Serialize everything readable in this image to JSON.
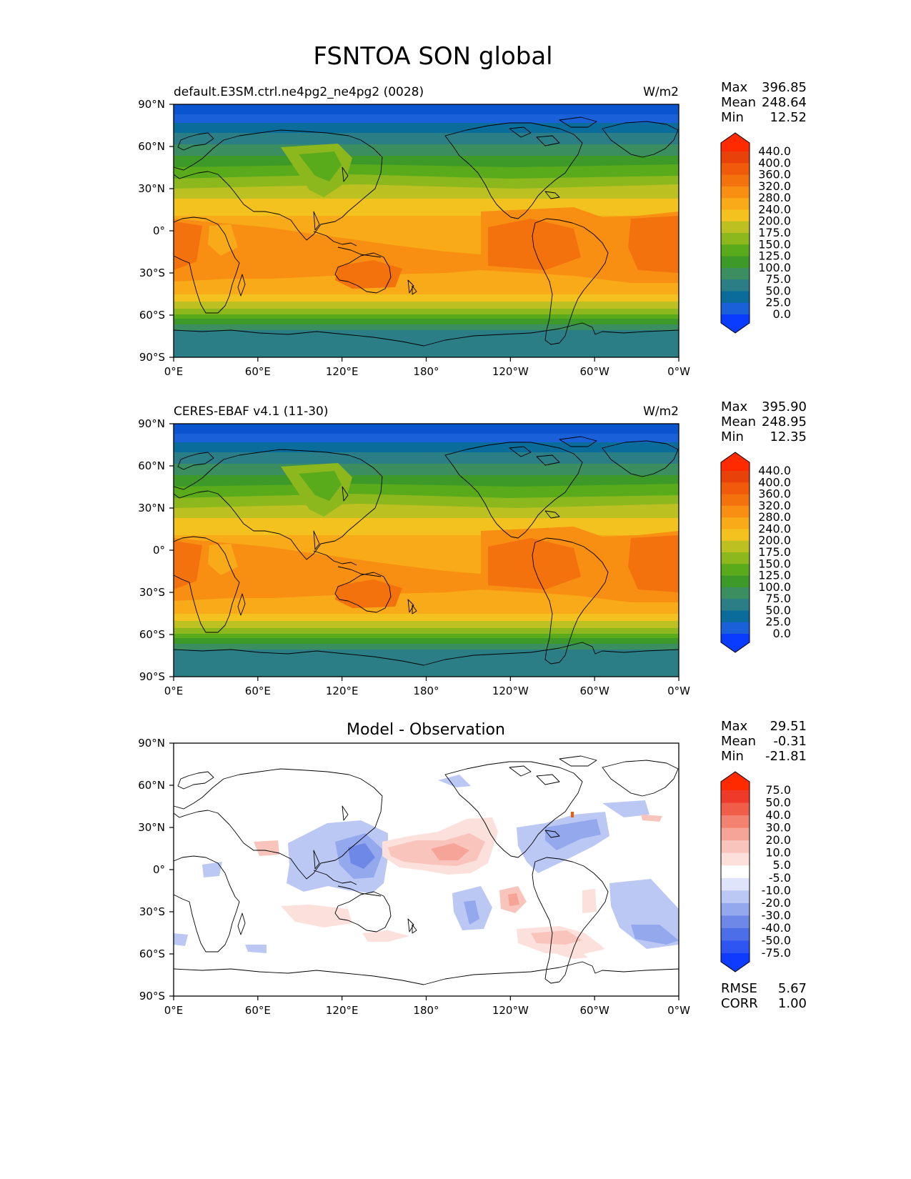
{
  "figure": {
    "title": "FSNTOA SON global"
  },
  "chart_data": [
    {
      "type": "heatmap",
      "title": "default.E3SM.ctrl.ne4pg2_ne4pg2 (0028)",
      "units": "W/m2",
      "xlim": [
        0,
        360
      ],
      "ylim": [
        -90,
        90
      ],
      "x_ticks": [
        "0°E",
        "60°E",
        "120°E",
        "180°",
        "120°W",
        "60°W",
        "0°W"
      ],
      "y_ticks": [
        "90°N",
        "60°N",
        "30°N",
        "0°",
        "30°S",
        "60°S",
        "90°S"
      ],
      "colorbar": {
        "levels": [
          "0.0",
          "25.0",
          "50.0",
          "75.0",
          "100.0",
          "125.0",
          "150.0",
          "175.0",
          "200.0",
          "240.0",
          "280.0",
          "320.0",
          "360.0",
          "400.0",
          "440.0"
        ],
        "colors": [
          "#0a3cff",
          "#1a60d8",
          "#0a6c9a",
          "#2b7e86",
          "#3a8e60",
          "#3e9a28",
          "#5aab1c",
          "#8cb81e",
          "#bcc020",
          "#f4c21f",
          "#f8aa19",
          "#f88e12",
          "#f4720d",
          "#f05a0a",
          "#e8420a",
          "#ff2a00"
        ],
        "under_color": "#0a3cff",
        "over_color": "#ff2a00"
      },
      "stats": {
        "Max": "396.85",
        "Mean": "248.64",
        "Min": "12.52"
      }
    },
    {
      "type": "heatmap",
      "title": "CERES-EBAF v4.1 (11-30)",
      "units": "W/m2",
      "xlim": [
        0,
        360
      ],
      "ylim": [
        -90,
        90
      ],
      "x_ticks": [
        "0°E",
        "60°E",
        "120°E",
        "180°",
        "120°W",
        "60°W",
        "0°W"
      ],
      "y_ticks": [
        "90°N",
        "60°N",
        "30°N",
        "0°",
        "30°S",
        "60°S",
        "90°S"
      ],
      "colorbar": {
        "levels": [
          "0.0",
          "25.0",
          "50.0",
          "75.0",
          "100.0",
          "125.0",
          "150.0",
          "175.0",
          "200.0",
          "240.0",
          "280.0",
          "320.0",
          "360.0",
          "400.0",
          "440.0"
        ],
        "colors": [
          "#0a3cff",
          "#1a60d8",
          "#0a6c9a",
          "#2b7e86",
          "#3a8e60",
          "#3e9a28",
          "#5aab1c",
          "#8cb81e",
          "#bcc020",
          "#f4c21f",
          "#f8aa19",
          "#f88e12",
          "#f4720d",
          "#f05a0a",
          "#e8420a",
          "#ff2a00"
        ],
        "under_color": "#0a3cff",
        "over_color": "#ff2a00"
      },
      "stats": {
        "Max": "395.90",
        "Mean": "248.95",
        "Min": "12.35"
      }
    },
    {
      "type": "heatmap",
      "title": "Model - Observation",
      "units": "",
      "xlim": [
        0,
        360
      ],
      "ylim": [
        -90,
        90
      ],
      "x_ticks": [
        "0°E",
        "60°E",
        "120°E",
        "180°",
        "120°W",
        "60°W",
        "0°W"
      ],
      "y_ticks": [
        "90°N",
        "60°N",
        "30°N",
        "0°",
        "30°S",
        "60°S",
        "90°S"
      ],
      "colorbar": {
        "levels": [
          "-75.0",
          "-50.0",
          "-40.0",
          "-30.0",
          "-20.0",
          "-10.0",
          "-5.0",
          "5.0",
          "10.0",
          "20.0",
          "30.0",
          "40.0",
          "50.0",
          "75.0"
        ],
        "colors": [
          "#0f3aff",
          "#2e55f2",
          "#4c6ee8",
          "#6d88e6",
          "#94a8ee",
          "#bcc8f4",
          "#dfe4fa",
          "#ffffff",
          "#fbe0dc",
          "#f9c4bc",
          "#f6a497",
          "#f38270",
          "#f05e4a",
          "#ee3a28",
          "#ff2a00"
        ],
        "under_color": "#0f3aff",
        "over_color": "#ff2a00"
      },
      "stats": {
        "Max": "29.51",
        "Mean": "-0.31",
        "Min": "-21.81"
      },
      "metrics": {
        "RMSE": "5.67",
        "CORR": "1.00"
      }
    }
  ]
}
